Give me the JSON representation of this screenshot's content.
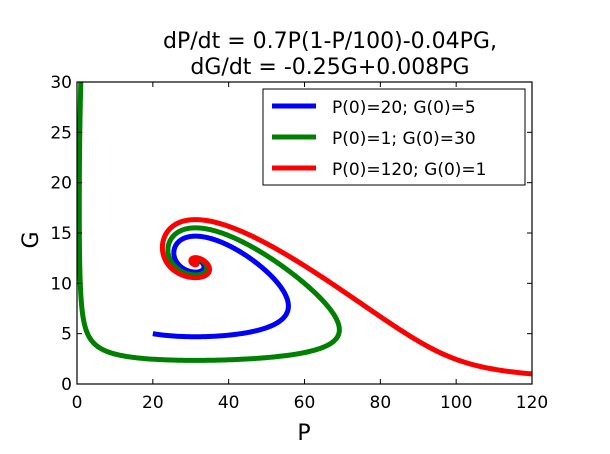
{
  "chart_data": {
    "type": "line",
    "title_line1": "dP/dt = 0.7P(1-P/100)-0.04PG,",
    "title_line2": "dG/dt = -0.25G+0.008PG",
    "model": {
      "r": 0.7,
      "K": 100,
      "a": 0.04,
      "d": 0.25,
      "b": 0.008
    },
    "xlabel": "P",
    "ylabel": "G",
    "xlim": [
      0,
      120
    ],
    "ylim": [
      0,
      30
    ],
    "xticks": [
      "0",
      "20",
      "40",
      "60",
      "80",
      "100",
      "120"
    ],
    "yticks": [
      "0",
      "5",
      "10",
      "15",
      "20",
      "25",
      "30"
    ],
    "grid": false,
    "legend_position": "top-right",
    "series": [
      {
        "name": "P(0)=20; G(0)=5",
        "P0": 20,
        "G0": 5,
        "color": "#0000ff"
      },
      {
        "name": "P(0)=1; G(0)=30",
        "P0": 1,
        "G0": 30,
        "color": "#008000"
      },
      {
        "name": "P(0)=120; G(0)=1",
        "P0": 120,
        "G0": 1,
        "color": "#ff0000"
      }
    ]
  }
}
